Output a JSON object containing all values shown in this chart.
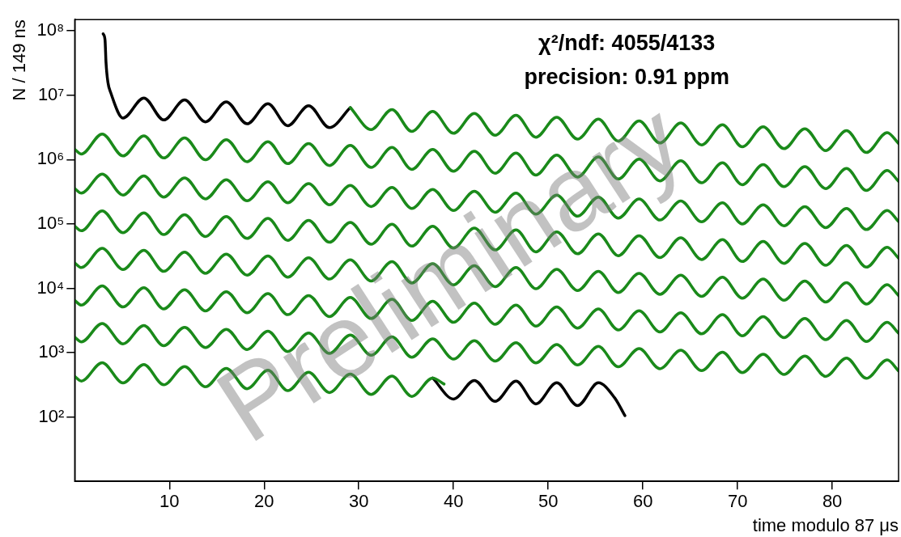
{
  "chart_data": {
    "type": "line",
    "xlabel": "time modulo 87 μs",
    "ylabel": "N / 149 ns",
    "annotations": [
      "χ²/ndf: 4055/4133",
      "precision: 0.91 ppm",
      "Preliminary"
    ],
    "x": [
      0,
      0.7,
      2.9,
      5.1,
      7.3,
      9.4,
      11.6,
      13.8,
      16.0,
      18.2,
      20.4,
      22.5,
      24.7,
      26.9,
      29.1,
      31.3,
      33.5,
      35.6,
      37.8,
      40.0,
      42.2,
      44.4,
      46.6,
      48.7,
      50.9,
      53.1,
      55.3,
      57.4,
      59.6,
      61.8,
      64.0,
      66.2,
      68.4,
      70.5,
      72.7,
      74.9,
      77.1,
      79.3,
      81.5,
      83.6,
      85.8,
      87
    ],
    "series": [
      {
        "color": "#000000",
        "x": [
          3.0,
          3.2,
          3.3,
          3.5,
          3.8,
          5.1,
          7.3,
          9.4,
          11.6,
          13.8,
          16.0,
          18.2,
          20.4,
          22.5,
          24.7,
          26.9,
          29.1
        ],
        "values": [
          90000000,
          72000000,
          33000000,
          16000000,
          11000000,
          4430000,
          9060000,
          4130000,
          8460000,
          3860000,
          7900000,
          3600000,
          7370000,
          3360000,
          6880000,
          3140000,
          6430000
        ]
      },
      {
        "color": "#000000",
        "x": [
          37.8,
          40.0,
          42.2,
          44.4,
          46.6,
          48.7,
          50.9,
          53.1,
          55.3,
          57.0,
          58.1
        ],
        "values": [
          404,
          190,
          370,
          175,
          360,
          160,
          340,
          150,
          340,
          200,
          105
        ]
      },
      {
        "color": "#1a8a1a",
        "x": [
          29.1,
          31.3,
          33.5,
          35.6,
          37.8,
          40.0,
          42.2,
          44.4,
          46.6,
          48.7,
          50.9,
          53.1,
          55.3,
          57.4,
          59.6,
          61.8,
          64.0,
          66.2,
          68.4,
          70.5,
          72.7,
          74.9,
          77.1,
          79.3,
          81.5,
          83.6,
          85.8,
          87
        ],
        "values": [
          6430000,
          2930000,
          6000000,
          2740000,
          5600000,
          2560000,
          5230000,
          2390000,
          4880000,
          2230000,
          4560000,
          2080000,
          4260000,
          1940000,
          3980000,
          1810000,
          3710000,
          1690000,
          3470000,
          1580000,
          3240000,
          1480000,
          3020000,
          1380000,
          2820000,
          1290000,
          2630000,
          1780000
        ]
      },
      {
        "color": "#1a8a1a",
        "values": [
          1440000,
          1220000,
          2500000,
          1140000,
          2330000,
          1060000,
          2180000,
          993000,
          2040000,
          927000,
          1900000,
          866000,
          1770000,
          808000,
          1660000,
          755000,
          1550000,
          705000,
          1440000,
          658000,
          1350000,
          614000,
          1260000,
          574000,
          1180000,
          536000,
          1100000,
          500000,
          1020000,
          467000,
          957000,
          436000,
          893000,
          407000,
          834000,
          380000,
          779000,
          355000,
          727000,
          331000,
          679000,
          458000
        ]
      },
      {
        "color": "#1a8a1a",
        "values": [
          355000,
          301000,
          597000,
          281000,
          557000,
          262000,
          520000,
          245000,
          486000,
          229000,
          454000,
          214000,
          424000,
          199000,
          396000,
          186000,
          369000,
          174000,
          345000,
          162000,
          322000,
          152000,
          301000,
          142000,
          281000,
          132000,
          262000,
          123000,
          245000,
          115000,
          228000,
          108000,
          213000,
          100000,
          199000,
          93800,
          186000,
          87600,
          174000,
          81800,
          162000,
          109000
        ]
      },
      {
        "color": "#1a8a1a",
        "values": [
          92400,
          78300,
          160000,
          73100,
          149000,
          68300,
          139000,
          63700,
          130000,
          59500,
          122000,
          55600,
          114000,
          51900,
          106000,
          48400,
          99000,
          45200,
          92400,
          42200,
          86300,
          39400,
          80600,
          36800,
          75200,
          34400,
          70200,
          32100,
          65600,
          30000,
          61200,
          28000,
          57200,
          26100,
          53400,
          24400,
          49800,
          22800,
          46500,
          21300,
          43500,
          29400
        ]
      },
      {
        "color": "#1a8a1a",
        "values": [
          24800,
          21000,
          41800,
          19600,
          39000,
          18300,
          36400,
          17100,
          34000,
          16000,
          31800,
          14900,
          29700,
          13900,
          27700,
          13000,
          25900,
          12100,
          24100,
          11300,
          22500,
          10600,
          21100,
          9870,
          19700,
          9220,
          18400,
          8610,
          17100,
          8040,
          16000,
          7500,
          14900,
          7010,
          13900,
          6540,
          13000,
          6110,
          12200,
          5700,
          11400,
          7700
        ]
      },
      {
        "color": "#1a8a1a",
        "values": [
          6470,
          5480,
          10900,
          5120,
          10200,
          4780,
          9500,
          4460,
          8870,
          4160,
          8280,
          3890,
          7730,
          3630,
          7220,
          3390,
          6740,
          3170,
          6300,
          2960,
          5880,
          2760,
          5490,
          2580,
          5130,
          2410,
          4790,
          2250,
          4470,
          2100,
          4170,
          1960,
          3890,
          1830,
          3640,
          1710,
          3400,
          1590,
          3170,
          1490,
          2960,
          2000
        ]
      },
      {
        "color": "#1a8a1a",
        "values": [
          1740,
          1470,
          2840,
          1370,
          2650,
          1280,
          2480,
          1200,
          2310,
          1120,
          2160,
          1040,
          2020,
          974,
          1880,
          909,
          1760,
          849,
          1640,
          793,
          1530,
          740,
          1430,
          691,
          1340,
          645,
          1250,
          603,
          1160,
          563,
          1090,
          525,
          1020,
          490,
          947,
          458,
          885,
          428,
          826,
          399,
          771,
          520
        ]
      },
      {
        "color": "#1a8a1a",
        "x": [
          0,
          0.7,
          2.9,
          5.1,
          7.3,
          9.4,
          11.6,
          13.8,
          16.0,
          18.2,
          20.4,
          22.5,
          24.7,
          26.9,
          29.1,
          31.3,
          33.5,
          35.6,
          37.8,
          39.0
        ],
        "values": [
          427,
          362,
          700,
          338,
          654,
          316,
          610,
          295,
          570,
          275,
          532,
          257,
          497,
          240,
          464,
          224,
          433,
          209,
          404,
          325
        ]
      }
    ],
    "log": true,
    "xlim": [
      0,
      87
    ],
    "xticks": [
      10,
      20,
      30,
      40,
      50,
      60,
      70,
      80
    ],
    "ylim": [
      10,
      150000000
    ],
    "yticks": [
      {
        "value": 100,
        "label": "10²"
      },
      {
        "value": 1000,
        "label": "10³"
      },
      {
        "value": 10000,
        "label": "10⁴"
      },
      {
        "value": 100000,
        "label": "10⁵"
      },
      {
        "value": 1000000,
        "label": "10⁶"
      },
      {
        "value": 10000000,
        "label": "10⁷"
      },
      {
        "value": 100000000,
        "label": "10⁸"
      }
    ],
    "grid": false,
    "legend": false,
    "marker": "none",
    "line_style": "solid"
  }
}
